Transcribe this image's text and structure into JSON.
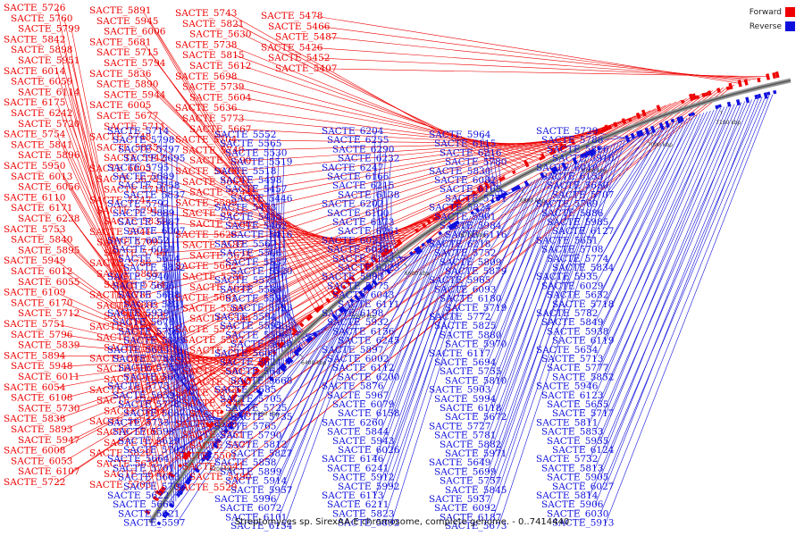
{
  "legend": {
    "forward": {
      "label": "Forward",
      "color": "#ee0000"
    },
    "reverse": {
      "label": "Reverse",
      "color": "#1010dd"
    }
  },
  "caption": "Streptomyces sp. SirexAA-E chromosome, complete genome. - 0..7414440",
  "ticks": [
    "6200 kbp",
    "6300 kbp",
    "6400 kbp",
    "6500 kbp",
    "6600 kbp",
    "6700 kbp",
    "6800 kbp",
    "6900 kbp",
    "7000 kbp",
    "7100 kbp"
  ],
  "forward_labels": [
    "SACTE_5726",
    "SACTE_5760",
    "SACTE_5799",
    "SACTE_5842",
    "SACTE_5898",
    "SACTE_5951",
    "SACTE_6014",
    "SACTE_6059",
    "SACTE_6114",
    "SACTE_6175",
    "SACTE_6242",
    "SACTE_5720",
    "SACTE_5754",
    "SACTE_5841",
    "SACTE_5896",
    "SACTE_5950",
    "SACTE_6013",
    "SACTE_6056",
    "SACTE_6110",
    "SACTE_6171",
    "SACTE_6238",
    "SACTE_5753",
    "SACTE_5840",
    "SACTE_5895",
    "SACTE_5949",
    "SACTE_6012",
    "SACTE_6055",
    "SACTE_6109",
    "SACTE_6170",
    "SACTE_5712",
    "SACTE_5751",
    "SACTE_5796",
    "SACTE_5839",
    "SACTE_5894",
    "SACTE_5948",
    "SACTE_6011",
    "SACTE_6054",
    "SACTE_6108",
    "SACTE_5730",
    "SACTE_5838",
    "SACTE_5893",
    "SACTE_5947",
    "SACTE_6008",
    "SACTE_6053",
    "SACTE_6107",
    "SACTE_5722",
    "SACTE_5891",
    "SACTE_5945",
    "SACTE_6006",
    "SACTE_5681",
    "SACTE_5715",
    "SACTE_5794",
    "SACTE_5836",
    "SACTE_5890",
    "SACTE_5944",
    "SACTE_6005",
    "SACTE_5677",
    "SACTE_5711",
    "SACTE_5748",
    "SACTE_5835",
    "SACTE_5942",
    "SACTE_6003",
    "SACTE_5675",
    "SACTE_5710",
    "SACTE_5747",
    "SACTE_5791",
    "SACTE_5833",
    "SACTE_5941",
    "SACTE_5709",
    "SACTE_5746",
    "SACTE_5786",
    "SACTE_5885",
    "SACTE_5724",
    "SACTE_5785",
    "SACTE_5883",
    "SACTE_5653",
    "SACTE_5686",
    "SACTE_5723",
    "SACTE_5808",
    "SACTE_5851",
    "SACTE_5902",
    "SACTE_5642",
    "SACTE_5716",
    "SACTE_5793",
    "SACTE_5884",
    "SACTE_5671",
    "SACTE_5706",
    "SACTE_5745",
    "SACTE_5828",
    "SACTE_5632",
    "SACTE_5670",
    "SACTE_5703",
    "SACTE_5743",
    "SACTE_5821",
    "SACTE_5630",
    "SACTE_5738",
    "SACTE_5815",
    "SACTE_5612",
    "SACTE_5698",
    "SACTE_5739",
    "SACTE_5604",
    "SACTE_5636",
    "SACTE_5773",
    "SACTE_5667",
    "SACTE_5704",
    "SACTE_5749",
    "SACTE_5590",
    "SACTE_5628",
    "SACTE_5665",
    "SACTE_5744",
    "SACTE_5589",
    "SACTE_5627",
    "SACTE_5588",
    "SACTE_5626",
    "SACTE_5587",
    "SACTE_5625",
    "SACTE_5662",
    "SACTE_5586",
    "SACTE_5623",
    "SACTE_5661",
    "SACTE_5585",
    "SACTE_5584",
    "SACTE_5572",
    "SACTE_5582",
    "SACTE_5619",
    "SACTE_5562",
    "SACTE_5581",
    "SACTE_5610",
    "SACTE_5579",
    "SACTE_5544",
    "SACTE_5576",
    "SACTE_5580",
    "SACTE_5551",
    "SACTE_5577",
    "SACTE_5501",
    "SACTE_5541",
    "SACTE_5490",
    "SACTE_5529",
    "SACTE_5478",
    "SACTE_5466",
    "SACTE_5487",
    "SACTE_5426",
    "SACTE_5452",
    "SACTE_5407"
  ],
  "reverse_labels": [
    "SACTE_5714",
    "SACTE_5798",
    "SACTE_5797",
    "SACTE_5695",
    "SACTE_5795",
    "SACTE_5689",
    "SACTE_5758",
    "SACTE_5837",
    "SACTE_5792",
    "SACTE_5889",
    "SACTE_5887",
    "SACTE_6007",
    "SACTE_6052",
    "SACTE_6051",
    "SACTE_5674",
    "SACTE_5832",
    "SACTE_5940",
    "SACTE_5656",
    "SACTE_5688",
    "SACTE_5831",
    "SACTE_5939",
    "SACTE_5676",
    "SACTE_5756",
    "SACTE_5829",
    "SACTE_5633",
    "SACTE_5784",
    "SACTE_5783",
    "SACTE_5669",
    "SACTE_5775",
    "SACTE_5659",
    "SACTE_5778",
    "SACTE_5687",
    "SACTE_5733",
    "SACTE_5598",
    "SACTE_5629",
    "SACTE_5702",
    "SACTE_5664",
    "SACTE_5701",
    "SACTE_5663",
    "SACTE_5700",
    "SACTE_5622",
    "SACTE_5660",
    "SACTE_5621",
    "SACTE_5597",
    "SACTE_5552",
    "SACTE_5565",
    "SACTE_5530",
    "SACTE_5519",
    "SACTE_5518",
    "SACTE_5498",
    "SACTE_5457",
    "SACTE_5446",
    "SACTE_5473",
    "SACTE_5435",
    "SACTE_5462",
    "SACTE_5416",
    "SACTE_5567",
    "SACTE_5566",
    "SACTE_5537",
    "SACTE_5520",
    "SACTE_5578",
    "SACTE_5583",
    "SACTE_5592",
    "SACTE_5593",
    "SACTE_5594",
    "SACTE_5595",
    "SACTE_5596",
    "SACTE_5620",
    "SACTE_5603",
    "SACTE_5624",
    "SACTE_5647",
    "SACTE_5668",
    "SACTE_5685",
    "SACTE_5705",
    "SACTE_5725",
    "SACTE_5735",
    "SACTE_5765",
    "SACTE_5790",
    "SACTE_5812",
    "SACTE_5827",
    "SACTE_5858",
    "SACTE_5899",
    "SACTE_5914",
    "SACTE_5957",
    "SACTE_5996",
    "SACTE_6072",
    "SACTE_6101",
    "SACTE_6154",
    "SACTE_6204",
    "SACTE_6255",
    "SACTE_6290",
    "SACTE_6232",
    "SACTE_6247",
    "SACTE_6166",
    "SACTE_6215",
    "SACTE_6138",
    "SACTE_6202",
    "SACTE_6100",
    "SACTE_6173",
    "SACTE_6261",
    "SACTE_6023",
    "SACTE_6025",
    "SACTE_6133",
    "SACTE_6223",
    "SACTE_5993",
    "SACTE_5975",
    "SACTE_6043",
    "SACTE_6111",
    "SACTE_6198",
    "SACTE_5932",
    "SACTE_6156",
    "SACTE_6245",
    "SACTE_5897",
    "SACTE_6002",
    "SACTE_6112",
    "SACTE_6200",
    "SACTE_5876",
    "SACTE_5967",
    "SACTE_6079",
    "SACTE_6158",
    "SACTE_6260",
    "SACTE_5844",
    "SACTE_5943",
    "SACTE_6026",
    "SACTE_6146",
    "SACTE_6241",
    "SACTE_5912",
    "SACTE_5992",
    "SACTE_6113",
    "SACTE_6211",
    "SACTE_5823",
    "SACTE_5892",
    "SACTE_5964",
    "SACTE_6115",
    "SACTE_6216",
    "SACTE_5780",
    "SACTE_5830",
    "SACTE_6082",
    "SACTE_6165",
    "SACTE_5771",
    "SACTE_5824",
    "SACTE_5901",
    "SACTE_5984",
    "SACTE_6116",
    "SACTE_6218",
    "SACTE_5752",
    "SACTE_5809",
    "SACTE_5879",
    "SACTE_5965",
    "SACTE_6093",
    "SACTE_6180",
    "SACTE_5719",
    "SACTE_5772",
    "SACTE_5825",
    "SACTE_5880",
    "SACTE_5970",
    "SACTE_6117",
    "SACTE_5694",
    "SACTE_5755",
    "SACTE_5810",
    "SACTE_5903",
    "SACTE_5994",
    "SACTE_6118",
    "SACTE_5672",
    "SACTE_5727",
    "SACTE_5781",
    "SACTE_5882",
    "SACTE_5971",
    "SACTE_5649",
    "SACTE_5699",
    "SACTE_5757",
    "SACTE_5845",
    "SACTE_5937",
    "SACTE_6092",
    "SACTE_6187",
    "SACTE_5673",
    "SACTE_5729",
    "SACTE_5788",
    "SACTE_5826",
    "SACTE_5910",
    "SACTE_6010",
    "SACTE_6153",
    "SACTE_5650",
    "SACTE_5707",
    "SACTE_5769",
    "SACTE_5886",
    "SACTE_5985",
    "SACTE_6127",
    "SACTE_5651",
    "SACTE_5708",
    "SACTE_5774",
    "SACTE_5834",
    "SACTE_5935",
    "SACTE_6029",
    "SACTE_5652",
    "SACTE_5718",
    "SACTE_5782",
    "SACTE_5849",
    "SACTE_5938",
    "SACTE_6119",
    "SACTE_5654",
    "SACTE_5713",
    "SACTE_5777",
    "SACTE_5852",
    "SACTE_5946",
    "SACTE_6123",
    "SACTE_5655",
    "SACTE_5717",
    "SACTE_5811",
    "SACTE_5853",
    "SACTE_5955",
    "SACTE_6124",
    "SACTE_5732",
    "SACTE_5813",
    "SACTE_5905",
    "SACTE_6027",
    "SACTE_5814",
    "SACTE_5906",
    "SACTE_6030",
    "SACTE_5913"
  ]
}
